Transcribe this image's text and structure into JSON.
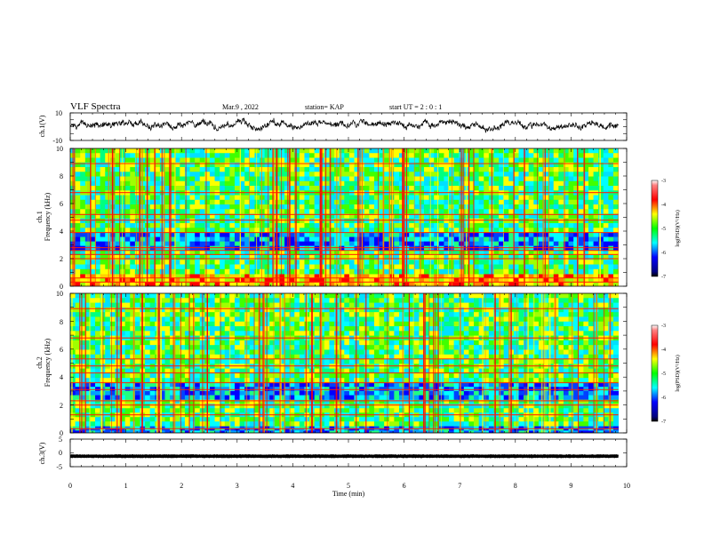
{
  "header": {
    "title": "VLF Spectra",
    "date": "Mar.9  , 2022",
    "station": "station= KAP",
    "start": "start  UT =   2  : 0   : 1"
  },
  "chart_data": [
    {
      "id": "ch1_waveform",
      "type": "line",
      "ylabel": "ch.1(V)",
      "ylim": [
        -10,
        10
      ],
      "yticks": [
        "10",
        "-10"
      ],
      "xlim": [
        0,
        10
      ],
      "series": [
        {
          "name": "ch.1 voltage",
          "color": "#000000",
          "note": "noise-like trace, mostly between -6 and 8 V"
        }
      ]
    },
    {
      "id": "ch1_spectrogram",
      "type": "heatmap",
      "ylabel": "Frequency (kHz)",
      "channel_label": "ch.1",
      "ylim": [
        0,
        10
      ],
      "yticks": [
        "10",
        "8",
        "6",
        "4",
        "2",
        "0"
      ],
      "xlim": [
        0,
        10
      ],
      "data_extent_min": 9.85,
      "colorbar": {
        "label": "log(PSD)(V²/Hz)",
        "range": [
          -7,
          -3
        ],
        "ticks": [
          "-3",
          "-4",
          "-5",
          "-6",
          "-7"
        ]
      },
      "bands_khz": [
        {
          "lo": 0.0,
          "hi": 0.9,
          "level": "high"
        },
        {
          "lo": 0.9,
          "hi": 2.6,
          "level": "mid"
        },
        {
          "lo": 2.6,
          "hi": 3.9,
          "level": "low"
        },
        {
          "lo": 3.9,
          "hi": 10.0,
          "level": "mid"
        }
      ],
      "lines_khz": [
        0.3,
        0.6,
        2.0,
        2.3,
        2.6,
        2.8,
        3.9,
        4.8,
        5.2,
        6.8,
        8.9
      ]
    },
    {
      "id": "ch2_spectrogram",
      "type": "heatmap",
      "ylabel": "Frequency (kHz)",
      "channel_label": "ch.2",
      "ylim": [
        0,
        10
      ],
      "yticks": [
        "10",
        "8",
        "6",
        "4",
        "2",
        "0"
      ],
      "xlim": [
        0,
        10
      ],
      "data_extent_min": 9.85,
      "colorbar": {
        "label": "log(PSD)(V²/Hz)",
        "range": [
          -7,
          -3
        ],
        "ticks": [
          "-3",
          "-4",
          "-5",
          "-6",
          "-7"
        ]
      },
      "bands_khz": [
        {
          "lo": 0.0,
          "hi": 0.5,
          "level": "low"
        },
        {
          "lo": 0.5,
          "hi": 2.4,
          "level": "mid"
        },
        {
          "lo": 2.4,
          "hi": 3.6,
          "level": "low"
        },
        {
          "lo": 3.6,
          "hi": 10.0,
          "level": "mid"
        }
      ],
      "lines_khz": [
        0.3,
        1.3,
        2.0,
        2.3,
        3.1,
        3.6,
        4.3,
        4.8,
        5.3,
        6.8,
        8.9
      ]
    },
    {
      "id": "ch3_waveform",
      "type": "line",
      "ylabel": "ch.3(V)",
      "ylim": [
        -5,
        5
      ],
      "yticks": [
        "5",
        "0",
        "-5"
      ],
      "xlim": [
        0,
        10
      ],
      "series": [
        {
          "name": "ch.3 voltage",
          "color": "#000000",
          "note": "dense signal between about -1.8 and -0.6 V"
        }
      ]
    }
  ],
  "xaxis": {
    "label": "Time  (min)",
    "ticks": [
      "0",
      "1",
      "2",
      "3",
      "4",
      "5",
      "6",
      "7",
      "8",
      "9",
      "10"
    ],
    "range": [
      0,
      10
    ]
  }
}
